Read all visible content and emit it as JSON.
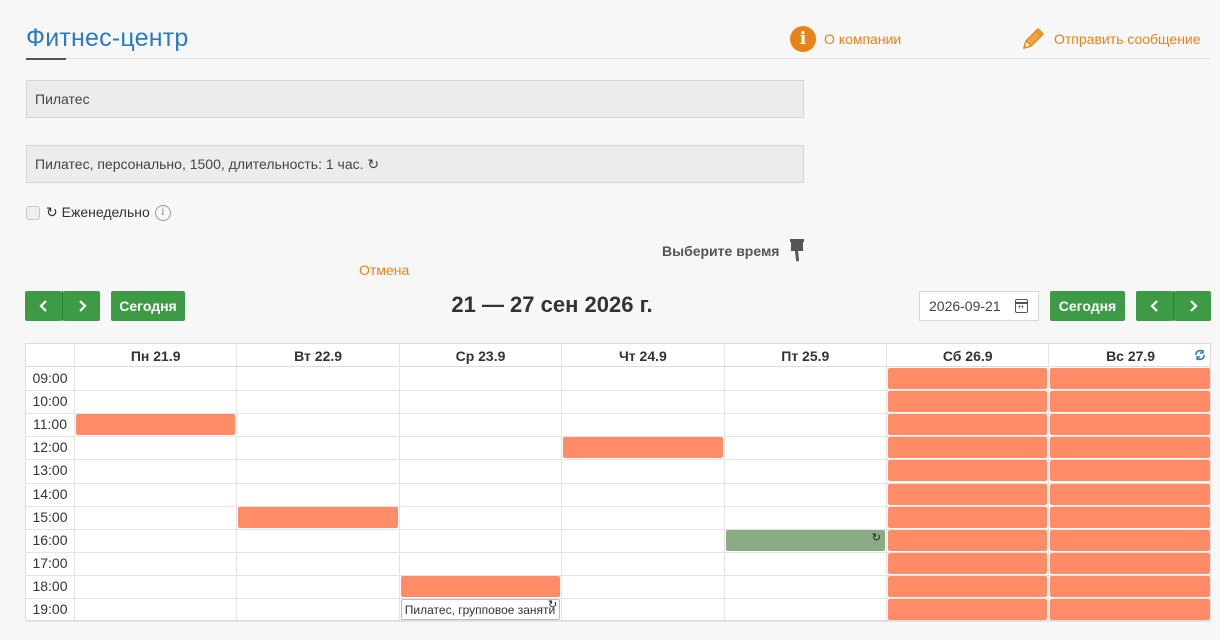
{
  "header": {
    "brand": "Фитнес-центр",
    "about_label": "О компании",
    "send_message_label": "Отправить сообщение",
    "accent_color": "#e8831a",
    "brand_color": "#2a7bc4"
  },
  "booking": {
    "service": "Пилатес",
    "option": "Пилатес, персонально, 1500, длительность: 1 час. ↻",
    "weekly_label": "↻ Еженедельно",
    "weekly_checked": false,
    "choose_time_label": "Выберите время",
    "cancel_label": "Отмена"
  },
  "calendar": {
    "today_label": "Сегодня",
    "range_title": "21 — 27 сен 2026 г.",
    "date_value": "2026-09-21",
    "days": [
      "Пн 21.9",
      "Вт 22.9",
      "Ср 23.9",
      "Чт 24.9",
      "Пт 25.9",
      "Сб 26.9",
      "Вс 27.9"
    ],
    "times": [
      "09:00",
      "10:00",
      "11:00",
      "12:00",
      "13:00",
      "14:00",
      "15:00",
      "16:00",
      "17:00",
      "18:00",
      "19:00"
    ],
    "busy_color": "#ff8c66",
    "mine_color": "#8aab85",
    "events": [
      {
        "day": 0,
        "slot": 2,
        "kind": "busy"
      },
      {
        "day": 1,
        "slot": 6,
        "kind": "busy"
      },
      {
        "day": 2,
        "slot": 9,
        "kind": "busy"
      },
      {
        "day": 3,
        "slot": 3,
        "kind": "busy"
      },
      {
        "day": 4,
        "slot": 7,
        "kind": "mine"
      }
    ],
    "full_busy_days": [
      5,
      6
    ],
    "selected": {
      "day": 2,
      "slot": 10,
      "label": "Пилатес, групповое заняти"
    }
  }
}
